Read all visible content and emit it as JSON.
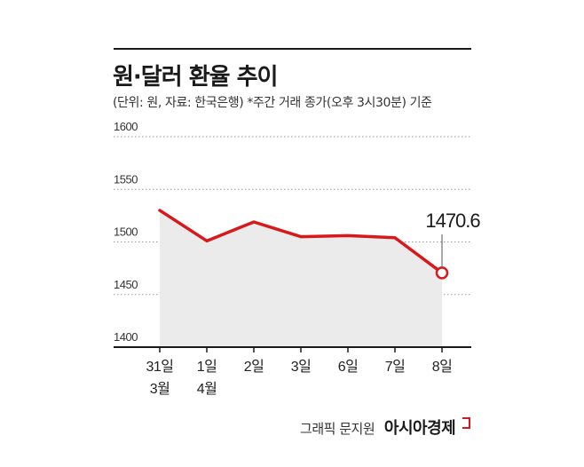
{
  "title": "원·달러 환율 추이",
  "subtitle": "(단위: 원, 자료: 한국은행) *주간 거래 종가(오후 3시30분) 기준",
  "credit": {
    "graphic": "그래픽 문지원",
    "brand": "아시아경제"
  },
  "colors": {
    "line": "#d7191c",
    "area": "#ebebeb",
    "axis": "#1a1a1a",
    "grid": "#999999"
  },
  "chart_data": {
    "type": "area",
    "title": "원·달러 환율 추이",
    "ylim": [
      1400,
      1600
    ],
    "yticks": [
      "1600",
      "1550",
      "1500",
      "1450",
      "1400"
    ],
    "categories": [
      {
        "day": "31일",
        "month": "3월"
      },
      {
        "day": "1일",
        "month": "4월"
      },
      {
        "day": "2일",
        "month": ""
      },
      {
        "day": "3일",
        "month": ""
      },
      {
        "day": "6일",
        "month": ""
      },
      {
        "day": "7일",
        "month": ""
      },
      {
        "day": "8일",
        "month": ""
      }
    ],
    "values": [
      1530,
      1501,
      1519,
      1505,
      1506,
      1504,
      1470.6
    ],
    "annotation": {
      "index": 6,
      "label": "1470.6"
    },
    "grid": "dotted horizontal"
  }
}
